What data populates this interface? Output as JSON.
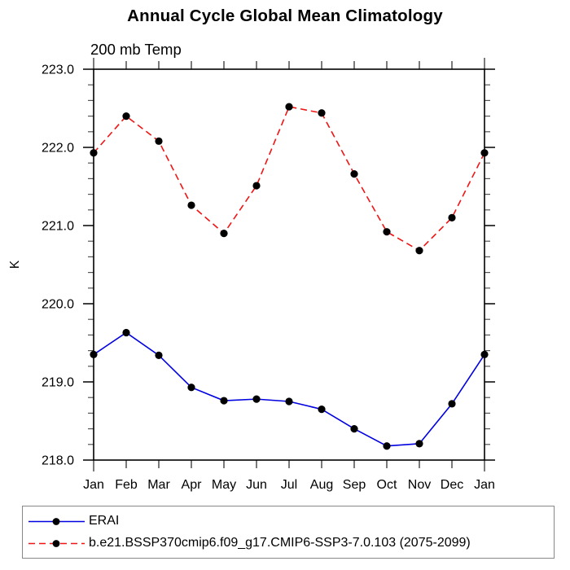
{
  "chart_data": {
    "type": "line",
    "title": "Annual Cycle Global Mean Climatology",
    "subtitle": "200 mb Temp",
    "ylabel": "K",
    "xlabel": "",
    "categories": [
      "Jan",
      "Feb",
      "Mar",
      "Apr",
      "May",
      "Jun",
      "Jul",
      "Aug",
      "Sep",
      "Oct",
      "Nov",
      "Dec",
      "Jan"
    ],
    "ylim": [
      218.0,
      223.0
    ],
    "ytick_interval": 1.0,
    "ytick_minor_interval": 0.2,
    "ytick_labels": [
      "218.0",
      "219.0",
      "220.0",
      "221.0",
      "222.0",
      "223.0"
    ],
    "grid": false,
    "legend_position": "bottom-left-box",
    "axis_color": "#000000",
    "series": [
      {
        "name": "ERAI",
        "color": "#0000e0",
        "line_style": "solid",
        "marker": "filled-circle",
        "marker_color": "#000000",
        "values": [
          219.35,
          219.63,
          219.34,
          218.93,
          218.76,
          218.78,
          218.75,
          218.65,
          218.4,
          218.18,
          218.21,
          218.72,
          219.35
        ]
      },
      {
        "name": "b.e21.BSSP370cmip6.f09_g17.CMIP6-SSP3-7.0.103 (2075-2099)",
        "color": "#f01414",
        "line_style": "dashed",
        "marker": "filled-circle",
        "marker_color": "#000000",
        "values": [
          221.93,
          222.4,
          222.08,
          221.26,
          220.9,
          221.51,
          222.52,
          222.44,
          221.66,
          220.92,
          220.68,
          221.1,
          221.93
        ]
      }
    ]
  }
}
